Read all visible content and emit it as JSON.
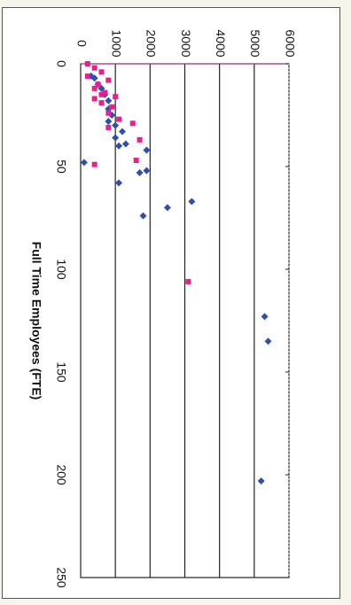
{
  "chart_data": {
    "type": "scatter",
    "orientation": "rotated-90-clockwise",
    "title": "",
    "xlabel": "Full Time Employees (FTE)",
    "ylabel": "",
    "xlim": [
      0,
      250
    ],
    "ylim": [
      0,
      6000
    ],
    "x_ticks": [
      0,
      50,
      100,
      150,
      200,
      250
    ],
    "y_ticks": [
      0,
      1000,
      2000,
      3000,
      4000,
      5000,
      6000
    ],
    "x_tick_labels": [
      "0",
      "50",
      "100",
      "150",
      "200",
      "250"
    ],
    "y_tick_labels": [
      "0",
      "1000",
      "2000",
      "3000",
      "4000",
      "5000",
      "6000"
    ],
    "grid": "major y gridlines",
    "legend": "none",
    "series": [
      {
        "color": "#2e4fae",
        "marker": "diamond",
        "points": [
          [
            6,
            300
          ],
          [
            7,
            400
          ],
          [
            10,
            500
          ],
          [
            12,
            600
          ],
          [
            15,
            700
          ],
          [
            18,
            800
          ],
          [
            22,
            800
          ],
          [
            25,
            900
          ],
          [
            28,
            800
          ],
          [
            30,
            1000
          ],
          [
            33,
            1200
          ],
          [
            36,
            1000
          ],
          [
            39,
            1300
          ],
          [
            40,
            1100
          ],
          [
            42,
            1900
          ],
          [
            48,
            100
          ],
          [
            52,
            1900
          ],
          [
            53,
            1700
          ],
          [
            58,
            1100
          ],
          [
            67,
            3200
          ],
          [
            70,
            2500
          ],
          [
            74,
            1800
          ],
          [
            123,
            5300
          ],
          [
            135,
            5400
          ],
          [
            203,
            5200
          ]
        ]
      },
      {
        "color": "#e8208e",
        "marker": "square",
        "points": [
          [
            0,
            200
          ],
          [
            2,
            400
          ],
          [
            4,
            600
          ],
          [
            6,
            200
          ],
          [
            8,
            800
          ],
          [
            10,
            500
          ],
          [
            12,
            400
          ],
          [
            14,
            700
          ],
          [
            15,
            600
          ],
          [
            16,
            1000
          ],
          [
            17,
            400
          ],
          [
            19,
            600
          ],
          [
            21,
            900
          ],
          [
            24,
            800
          ],
          [
            27,
            1100
          ],
          [
            29,
            1500
          ],
          [
            31,
            800
          ],
          [
            37,
            1700
          ],
          [
            47,
            1600
          ],
          [
            49,
            400
          ],
          [
            106,
            3100
          ]
        ]
      }
    ]
  }
}
